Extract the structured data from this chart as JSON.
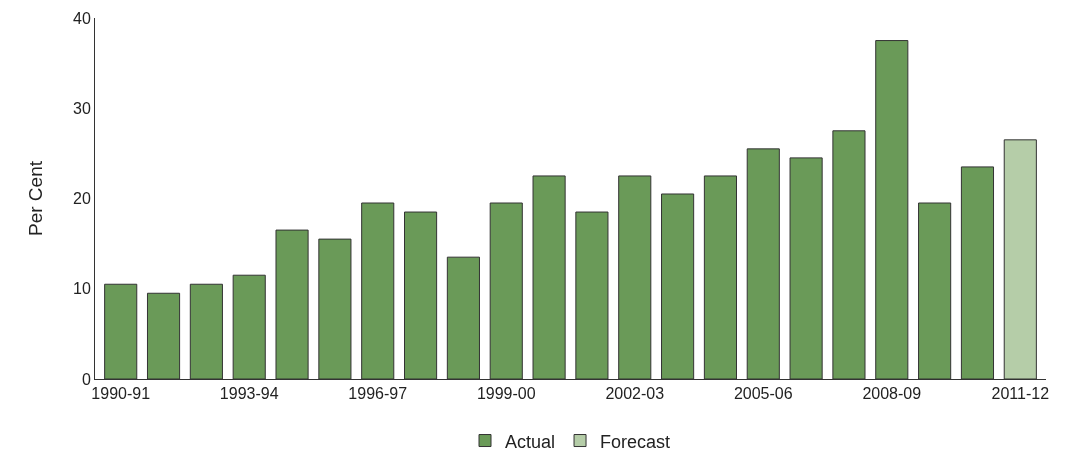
{
  "chart_data": {
    "type": "bar",
    "ylabel": "Per Cent",
    "categories": [
      "1990-91",
      null,
      null,
      "1993-94",
      null,
      null,
      "1996-97",
      null,
      null,
      "1999-00",
      null,
      null,
      "2002-03",
      null,
      null,
      "2005-06",
      null,
      null,
      "2008-09",
      null,
      null,
      "2011-12"
    ],
    "series": [
      {
        "name": "Actual",
        "color": "#6a9a58",
        "values": [
          10.5,
          9.5,
          10.5,
          11.5,
          16.5,
          15.5,
          19.5,
          18.5,
          13.5,
          19.5,
          22.5,
          18.5,
          22.5,
          20.5,
          22.5,
          25.5,
          24.5,
          27.5,
          37.5,
          19.5,
          23.5,
          null
        ]
      },
      {
        "name": "Forecast",
        "color": "#b5cda8",
        "values": [
          null,
          null,
          null,
          null,
          null,
          null,
          null,
          null,
          null,
          null,
          null,
          null,
          null,
          null,
          null,
          null,
          null,
          null,
          null,
          null,
          null,
          26.5
        ]
      }
    ],
    "ylim": [
      0,
      40
    ],
    "yticks": [
      0,
      10,
      20,
      30,
      40
    ],
    "grid": false,
    "legend": "bottom"
  }
}
